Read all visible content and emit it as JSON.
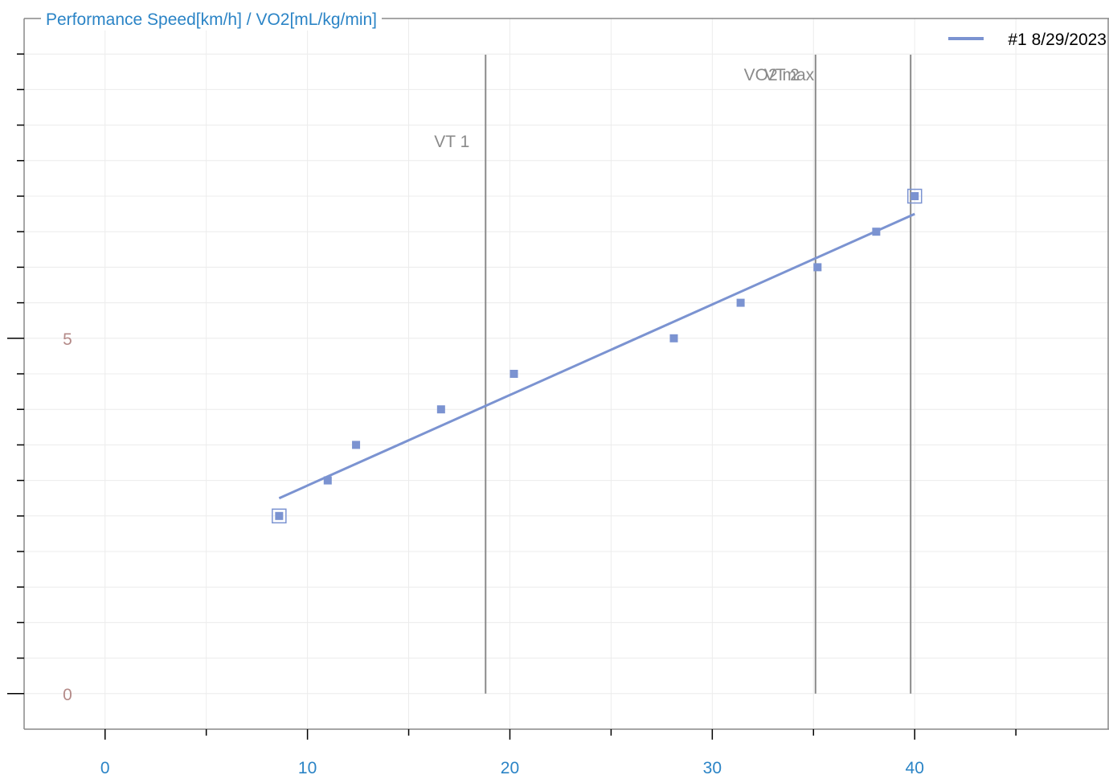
{
  "chart_data": {
    "type": "scatter",
    "title": "Performance Speed[km/h] / VO2[mL/kg/min]",
    "xlabel": "",
    "ylabel": "",
    "xlim": [
      -4,
      49.6
    ],
    "ylim": [
      -0.5,
      9.5
    ],
    "x_ticks": [
      0,
      10,
      20,
      30,
      40
    ],
    "y_ticks": [
      0,
      5
    ],
    "grid": true,
    "legend_position": "top-right",
    "series": [
      {
        "name": "#1 8/29/2023",
        "color": "#7b93d1",
        "points": [
          {
            "x": 8.6,
            "y": 2.5,
            "highlight": true
          },
          {
            "x": 11.0,
            "y": 3.0
          },
          {
            "x": 12.4,
            "y": 3.5
          },
          {
            "x": 16.6,
            "y": 4.0
          },
          {
            "x": 20.2,
            "y": 4.5
          },
          {
            "x": 28.1,
            "y": 5.0
          },
          {
            "x": 31.4,
            "y": 5.5
          },
          {
            "x": 35.2,
            "y": 6.0
          },
          {
            "x": 38.1,
            "y": 6.5
          },
          {
            "x": 40.0,
            "y": 7.0,
            "highlight": true
          }
        ],
        "trendline": {
          "x": [
            8.6,
            40.0
          ],
          "y": [
            2.75,
            6.75
          ]
        }
      }
    ],
    "markers": [
      {
        "label": "VT 1",
        "x": 18.8
      },
      {
        "label": "VT 2",
        "x": 35.1
      },
      {
        "label": "VO2 max",
        "x": 39.8
      }
    ]
  }
}
